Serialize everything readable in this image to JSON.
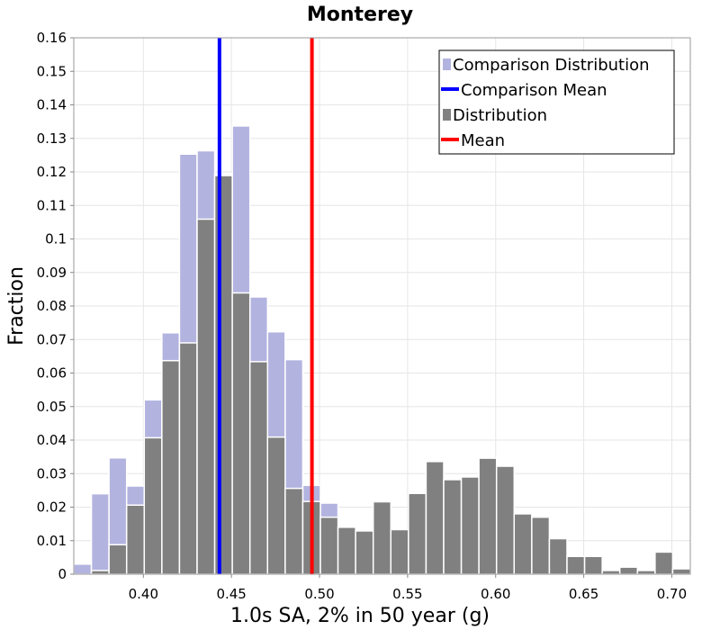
{
  "chart_data": {
    "type": "bar",
    "title": "Monterey",
    "xlabel": "1.0s SA, 2% in 50 year (g)",
    "ylabel": "Fraction",
    "xlim": [
      0.3605,
      0.7105
    ],
    "ylim": [
      0,
      0.16
    ],
    "bin_width": 0.01,
    "grid": true,
    "legend_position": "top-right",
    "x_ticks": [
      "0.40",
      "0.45",
      "0.50",
      "0.55",
      "0.60",
      "0.65",
      "0.70"
    ],
    "y_ticks": [
      "0",
      "0.01",
      "0.02",
      "0.03",
      "0.04",
      "0.05",
      "0.06",
      "0.07",
      "0.08",
      "0.09",
      "0.1",
      "0.11",
      "0.12",
      "0.13",
      "0.14",
      "0.15",
      "0.16"
    ],
    "colors": {
      "comparison_distribution": "#b3b3e0",
      "comparison_mean": "#0000ff",
      "distribution": "#808080",
      "mean": "#ff0000"
    },
    "series": [
      {
        "name": "Comparison Distribution",
        "x": [
          0.3655,
          0.3755,
          0.3855,
          0.3955,
          0.4055,
          0.4155,
          0.4255,
          0.4355,
          0.4455,
          0.4555,
          0.4655,
          0.4755,
          0.4855,
          0.4955,
          0.5055
        ],
        "values": [
          0.003,
          0.024,
          0.0347,
          0.0263,
          0.052,
          0.072,
          0.1253,
          0.1263,
          0.1193,
          0.1337,
          0.0827,
          0.0723,
          0.064,
          0.0265,
          0.0212
        ]
      },
      {
        "name": "Distribution",
        "x": [
          0.3755,
          0.3855,
          0.3955,
          0.4055,
          0.4155,
          0.4255,
          0.4355,
          0.4455,
          0.4555,
          0.4655,
          0.4755,
          0.4855,
          0.4955,
          0.5055,
          0.5155,
          0.5255,
          0.5355,
          0.5455,
          0.5555,
          0.5655,
          0.5755,
          0.5855,
          0.5955,
          0.6055,
          0.6155,
          0.6255,
          0.6355,
          0.6455,
          0.6555,
          0.6655,
          0.6755,
          0.6855,
          0.6955,
          0.7055
        ],
        "values": [
          0.0011,
          0.0088,
          0.0206,
          0.0407,
          0.0637,
          0.069,
          0.1059,
          0.1189,
          0.0839,
          0.0634,
          0.0409,
          0.0256,
          0.0217,
          0.017,
          0.014,
          0.0129,
          0.0216,
          0.0133,
          0.0241,
          0.0336,
          0.0282,
          0.029,
          0.0346,
          0.0322,
          0.018,
          0.017,
          0.0106,
          0.0053,
          0.0053,
          0.0011,
          0.0021,
          0.0011,
          0.0066,
          0.0016
        ]
      }
    ],
    "comparison_mean": 0.4432,
    "mean": 0.4957,
    "legend": [
      {
        "label": "Comparison Distribution",
        "kind": "box",
        "color": "#b3b3e0"
      },
      {
        "label": "Comparison Mean",
        "kind": "line",
        "color": "#0000ff"
      },
      {
        "label": "Distribution",
        "kind": "box",
        "color": "#808080"
      },
      {
        "label": "Mean",
        "kind": "line",
        "color": "#ff0000"
      }
    ]
  }
}
